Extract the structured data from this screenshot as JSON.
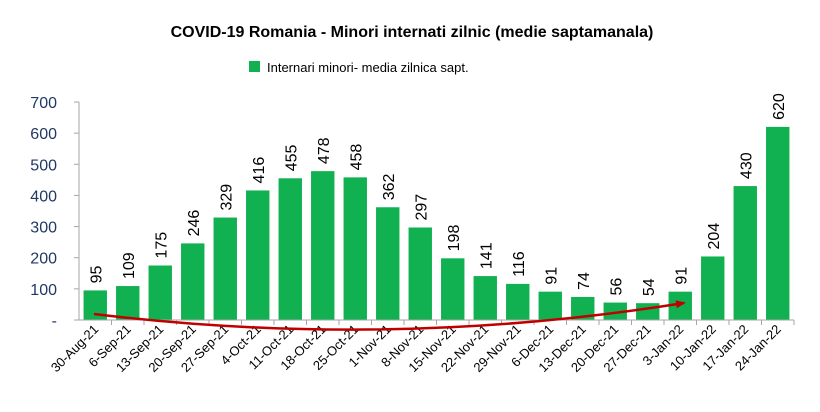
{
  "chart_data": {
    "type": "bar",
    "title": "COVID-19 Romania - Minori internati zilnic (medie saptamanala)",
    "legend": "Internari minori- media zilnica sapt.",
    "legend_position": "top",
    "categories": [
      "30-Aug-21",
      "6-Sep-21",
      "13-Sep-21",
      "20-Sep-21",
      "27-Sep-21",
      "4-Oct-21",
      "11-Oct-21",
      "18-Oct-21",
      "25-Oct-21",
      "1-Nov-21",
      "8-Nov-21",
      "15-Nov-21",
      "22-Nov-21",
      "29-Nov-21",
      "6-Dec-21",
      "13-Dec-21",
      "20-Dec-21",
      "27-Dec-21",
      "3-Jan-22",
      "10-Jan-22",
      "17-Jan-22",
      "24-Jan-22"
    ],
    "series": [
      {
        "name": "Internari minori- media zilnica sapt.",
        "values": [
          95,
          109,
          175,
          246,
          329,
          416,
          455,
          478,
          458,
          362,
          297,
          198,
          141,
          116,
          91,
          74,
          56,
          54,
          91,
          204,
          430,
          620
        ]
      }
    ],
    "data_labels": [
      "95",
      "109",
      "175",
      "246",
      "329",
      "416",
      "455",
      "478",
      "458",
      "362",
      "297",
      "198",
      "141",
      "116",
      "91",
      "74",
      "56",
      "54",
      "91",
      "204",
      "430",
      "620"
    ],
    "ylim": [
      0,
      700
    ],
    "yticks": [
      0,
      100,
      200,
      300,
      400,
      500,
      600,
      700
    ],
    "ytick_labels": [
      "-",
      "100",
      "200",
      "300",
      "400",
      "500",
      "600",
      "700"
    ],
    "grid": false,
    "colors": {
      "bar": "#11b050",
      "arrow": "#c00000",
      "ytick": "#1f3864",
      "axis": "#a6a6a6"
    }
  }
}
